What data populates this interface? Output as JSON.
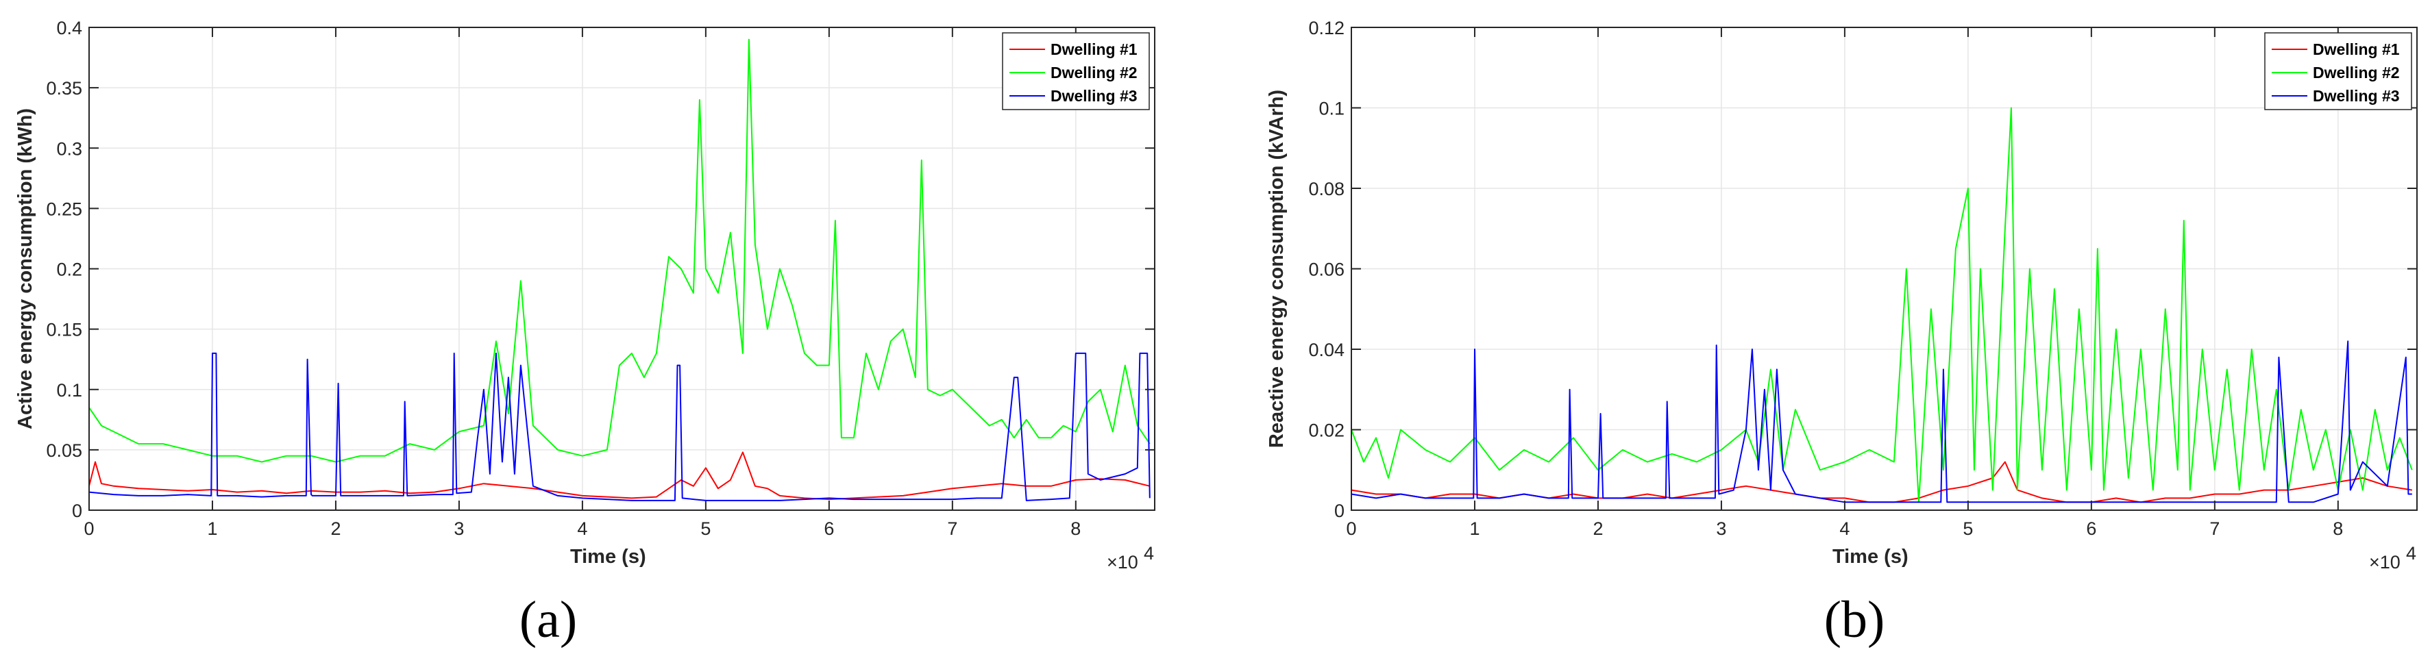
{
  "chart_data": [
    {
      "type": "line",
      "panel_label": "(a)",
      "xlabel": "Time (s)",
      "ylabel": "Active energy consumption (kWh)",
      "xlim": [
        0,
        86400
      ],
      "ylim": [
        0,
        0.4
      ],
      "x_ticks": [
        0,
        10000,
        20000,
        30000,
        40000,
        50000,
        60000,
        70000,
        80000
      ],
      "x_tick_labels": [
        "0",
        "1",
        "2",
        "3",
        "4",
        "5",
        "6",
        "7",
        "8"
      ],
      "x_multiplier": "×10",
      "x_multiplier_exp": "4",
      "y_ticks": [
        0,
        0.05,
        0.1,
        0.15,
        0.2,
        0.25,
        0.3,
        0.35,
        0.4
      ],
      "y_tick_labels": [
        "0",
        "0.05",
        "0.1",
        "0.15",
        "0.2",
        "0.25",
        "0.3",
        "0.35",
        "0.4"
      ],
      "grid": true,
      "legend_position": "top-right",
      "series": [
        {
          "name": "Dwelling #1",
          "color": "#ff0000",
          "x": [
            0,
            500,
            1000,
            2000,
            4000,
            6000,
            8000,
            10000,
            12000,
            14000,
            16000,
            18000,
            20000,
            22000,
            24000,
            26000,
            28000,
            30000,
            32000,
            34000,
            36000,
            38000,
            40000,
            42000,
            44000,
            46000,
            47000,
            48000,
            49000,
            50000,
            51000,
            52000,
            53000,
            54000,
            55000,
            56000,
            58000,
            60000,
            62000,
            64000,
            66000,
            68000,
            70000,
            72000,
            74000,
            76000,
            78000,
            80000,
            82000,
            84000,
            86000
          ],
          "y": [
            0.02,
            0.04,
            0.022,
            0.02,
            0.018,
            0.017,
            0.016,
            0.017,
            0.015,
            0.016,
            0.014,
            0.016,
            0.015,
            0.015,
            0.016,
            0.014,
            0.015,
            0.018,
            0.022,
            0.02,
            0.018,
            0.015,
            0.012,
            0.011,
            0.01,
            0.011,
            0.018,
            0.025,
            0.02,
            0.035,
            0.018,
            0.025,
            0.048,
            0.02,
            0.018,
            0.012,
            0.01,
            0.009,
            0.01,
            0.011,
            0.012,
            0.015,
            0.018,
            0.02,
            0.022,
            0.02,
            0.02,
            0.025,
            0.026,
            0.025,
            0.02
          ]
        },
        {
          "name": "Dwelling #2",
          "color": "#00ff00",
          "x": [
            0,
            1000,
            2000,
            4000,
            6000,
            8000,
            10000,
            12000,
            14000,
            16000,
            18000,
            20000,
            22000,
            24000,
            26000,
            28000,
            30000,
            32000,
            33000,
            34000,
            35000,
            36000,
            37000,
            38000,
            40000,
            42000,
            43000,
            44000,
            45000,
            46000,
            47000,
            48000,
            49000,
            49500,
            50000,
            51000,
            52000,
            53000,
            53500,
            54000,
            55000,
            56000,
            57000,
            58000,
            59000,
            60000,
            60500,
            61000,
            62000,
            63000,
            64000,
            65000,
            66000,
            67000,
            67500,
            68000,
            69000,
            70000,
            71000,
            72000,
            73000,
            74000,
            75000,
            76000,
            77000,
            78000,
            79000,
            80000,
            81000,
            82000,
            83000,
            84000,
            85000,
            86000
          ],
          "y": [
            0.085,
            0.07,
            0.065,
            0.055,
            0.055,
            0.05,
            0.045,
            0.045,
            0.04,
            0.045,
            0.045,
            0.04,
            0.045,
            0.045,
            0.055,
            0.05,
            0.065,
            0.07,
            0.14,
            0.08,
            0.19,
            0.07,
            0.06,
            0.05,
            0.045,
            0.05,
            0.12,
            0.13,
            0.11,
            0.13,
            0.21,
            0.2,
            0.18,
            0.34,
            0.2,
            0.18,
            0.23,
            0.13,
            0.39,
            0.22,
            0.15,
            0.2,
            0.17,
            0.13,
            0.12,
            0.12,
            0.24,
            0.06,
            0.06,
            0.13,
            0.1,
            0.14,
            0.15,
            0.11,
            0.29,
            0.1,
            0.095,
            0.1,
            0.09,
            0.08,
            0.07,
            0.075,
            0.06,
            0.075,
            0.06,
            0.06,
            0.07,
            0.065,
            0.09,
            0.1,
            0.065,
            0.12,
            0.07,
            0.055
          ]
        },
        {
          "name": "Dwelling #3",
          "color": "#0000ff",
          "x": [
            0,
            2000,
            4000,
            6000,
            8000,
            9900,
            10000,
            10300,
            10400,
            12000,
            14000,
            16000,
            17600,
            17700,
            18000,
            18100,
            20000,
            20200,
            20400,
            22000,
            24000,
            25500,
            25600,
            25800,
            28000,
            29500,
            29600,
            29800,
            31000,
            31500,
            32000,
            32500,
            33000,
            33500,
            34000,
            34500,
            35000,
            36000,
            38000,
            40000,
            42000,
            44000,
            46000,
            47500,
            47700,
            47900,
            48100,
            50000,
            52000,
            54000,
            56000,
            58000,
            60000,
            62000,
            64000,
            66000,
            68000,
            70000,
            72000,
            74000,
            75000,
            75300,
            76000,
            78000,
            79500,
            80000,
            80800,
            81000,
            82000,
            84000,
            85000,
            85200,
            85800,
            86000
          ],
          "y": [
            0.015,
            0.013,
            0.012,
            0.012,
            0.013,
            0.012,
            0.13,
            0.13,
            0.012,
            0.012,
            0.011,
            0.012,
            0.012,
            0.125,
            0.013,
            0.012,
            0.012,
            0.105,
            0.012,
            0.012,
            0.012,
            0.012,
            0.09,
            0.012,
            0.013,
            0.013,
            0.13,
            0.014,
            0.015,
            0.06,
            0.1,
            0.03,
            0.13,
            0.04,
            0.11,
            0.03,
            0.12,
            0.02,
            0.012,
            0.01,
            0.009,
            0.008,
            0.008,
            0.008,
            0.12,
            0.12,
            0.01,
            0.008,
            0.008,
            0.008,
            0.008,
            0.009,
            0.01,
            0.009,
            0.009,
            0.009,
            0.009,
            0.009,
            0.01,
            0.01,
            0.11,
            0.11,
            0.008,
            0.009,
            0.01,
            0.13,
            0.13,
            0.03,
            0.025,
            0.03,
            0.035,
            0.13,
            0.13,
            0.01
          ]
        }
      ]
    },
    {
      "type": "line",
      "panel_label": "(b)",
      "xlabel": "Time (s)",
      "ylabel": "Reactive energy consumption (kVArh)",
      "xlim": [
        0,
        86400
      ],
      "ylim": [
        0,
        0.12
      ],
      "x_ticks": [
        0,
        10000,
        20000,
        30000,
        40000,
        50000,
        60000,
        70000,
        80000
      ],
      "x_tick_labels": [
        "0",
        "1",
        "2",
        "3",
        "4",
        "5",
        "6",
        "7",
        "8"
      ],
      "x_multiplier": "×10",
      "x_multiplier_exp": "4",
      "y_ticks": [
        0,
        0.02,
        0.04,
        0.06,
        0.08,
        0.1,
        0.12
      ],
      "y_tick_labels": [
        "0",
        "0.02",
        "0.04",
        "0.06",
        "0.08",
        "0.1",
        "0.12"
      ],
      "grid": true,
      "legend_position": "top-right",
      "series": [
        {
          "name": "Dwelling #1",
          "color": "#ff0000",
          "x": [
            0,
            2000,
            4000,
            6000,
            8000,
            10000,
            12000,
            14000,
            16000,
            18000,
            20000,
            22000,
            24000,
            26000,
            28000,
            30000,
            32000,
            34000,
            36000,
            38000,
            40000,
            42000,
            44000,
            46000,
            48000,
            50000,
            52000,
            53000,
            54000,
            56000,
            58000,
            60000,
            62000,
            64000,
            66000,
            68000,
            70000,
            72000,
            74000,
            76000,
            78000,
            80000,
            82000,
            84000,
            86000
          ],
          "y": [
            0.005,
            0.004,
            0.004,
            0.003,
            0.004,
            0.004,
            0.003,
            0.004,
            0.003,
            0.004,
            0.003,
            0.003,
            0.004,
            0.003,
            0.004,
            0.005,
            0.006,
            0.005,
            0.004,
            0.003,
            0.003,
            0.002,
            0.002,
            0.003,
            0.005,
            0.006,
            0.008,
            0.012,
            0.005,
            0.003,
            0.002,
            0.002,
            0.003,
            0.002,
            0.003,
            0.003,
            0.004,
            0.004,
            0.005,
            0.005,
            0.006,
            0.007,
            0.008,
            0.006,
            0.005
          ]
        },
        {
          "name": "Dwelling #2",
          "color": "#00ff00",
          "x": [
            0,
            1000,
            2000,
            3000,
            4000,
            6000,
            8000,
            10000,
            12000,
            14000,
            16000,
            18000,
            20000,
            22000,
            24000,
            26000,
            28000,
            30000,
            32000,
            33000,
            34000,
            35000,
            36000,
            38000,
            40000,
            42000,
            44000,
            45000,
            46000,
            47000,
            48000,
            49000,
            50000,
            50500,
            51000,
            52000,
            53000,
            53500,
            54000,
            55000,
            56000,
            57000,
            58000,
            59000,
            60000,
            60500,
            61000,
            62000,
            63000,
            64000,
            65000,
            66000,
            67000,
            67500,
            68000,
            69000,
            70000,
            71000,
            72000,
            73000,
            74000,
            75000,
            76000,
            77000,
            78000,
            79000,
            80000,
            81000,
            82000,
            83000,
            84000,
            85000,
            86000
          ],
          "y": [
            0.02,
            0.012,
            0.018,
            0.008,
            0.02,
            0.015,
            0.012,
            0.018,
            0.01,
            0.015,
            0.012,
            0.018,
            0.01,
            0.015,
            0.012,
            0.014,
            0.012,
            0.015,
            0.02,
            0.012,
            0.035,
            0.01,
            0.025,
            0.01,
            0.012,
            0.015,
            0.012,
            0.06,
            0.002,
            0.05,
            0.01,
            0.065,
            0.08,
            0.01,
            0.06,
            0.005,
            0.07,
            0.1,
            0.005,
            0.06,
            0.01,
            0.055,
            0.005,
            0.05,
            0.01,
            0.065,
            0.005,
            0.045,
            0.008,
            0.04,
            0.005,
            0.05,
            0.01,
            0.072,
            0.005,
            0.04,
            0.01,
            0.035,
            0.005,
            0.04,
            0.01,
            0.03,
            0.005,
            0.025,
            0.01,
            0.02,
            0.005,
            0.02,
            0.005,
            0.025,
            0.01,
            0.018,
            0.01
          ]
        },
        {
          "name": "Dwelling #3",
          "color": "#0000ff",
          "x": [
            0,
            2000,
            4000,
            6000,
            8000,
            9900,
            10000,
            10200,
            12000,
            14000,
            16000,
            17600,
            17700,
            17900,
            20000,
            20200,
            20400,
            22000,
            24000,
            25500,
            25600,
            25800,
            28000,
            29500,
            29600,
            29800,
            31000,
            32000,
            32500,
            33000,
            33500,
            34000,
            34500,
            35000,
            36000,
            38000,
            40000,
            42000,
            44000,
            46000,
            47800,
            48000,
            48300,
            50000,
            52000,
            54000,
            56000,
            58000,
            60000,
            62000,
            64000,
            66000,
            68000,
            70000,
            72000,
            74000,
            75000,
            75200,
            76000,
            78000,
            80000,
            80800,
            81000,
            82000,
            84000,
            85500,
            85700,
            86000
          ],
          "y": [
            0.004,
            0.003,
            0.004,
            0.003,
            0.003,
            0.003,
            0.04,
            0.003,
            0.003,
            0.004,
            0.003,
            0.003,
            0.03,
            0.003,
            0.003,
            0.024,
            0.003,
            0.003,
            0.003,
            0.003,
            0.027,
            0.003,
            0.003,
            0.003,
            0.041,
            0.004,
            0.005,
            0.02,
            0.04,
            0.01,
            0.03,
            0.005,
            0.035,
            0.01,
            0.004,
            0.003,
            0.002,
            0.002,
            0.002,
            0.002,
            0.002,
            0.035,
            0.002,
            0.002,
            0.002,
            0.002,
            0.002,
            0.002,
            0.002,
            0.002,
            0.002,
            0.002,
            0.002,
            0.002,
            0.002,
            0.002,
            0.002,
            0.038,
            0.002,
            0.002,
            0.004,
            0.042,
            0.005,
            0.012,
            0.006,
            0.038,
            0.004,
            0.004
          ]
        }
      ]
    }
  ]
}
